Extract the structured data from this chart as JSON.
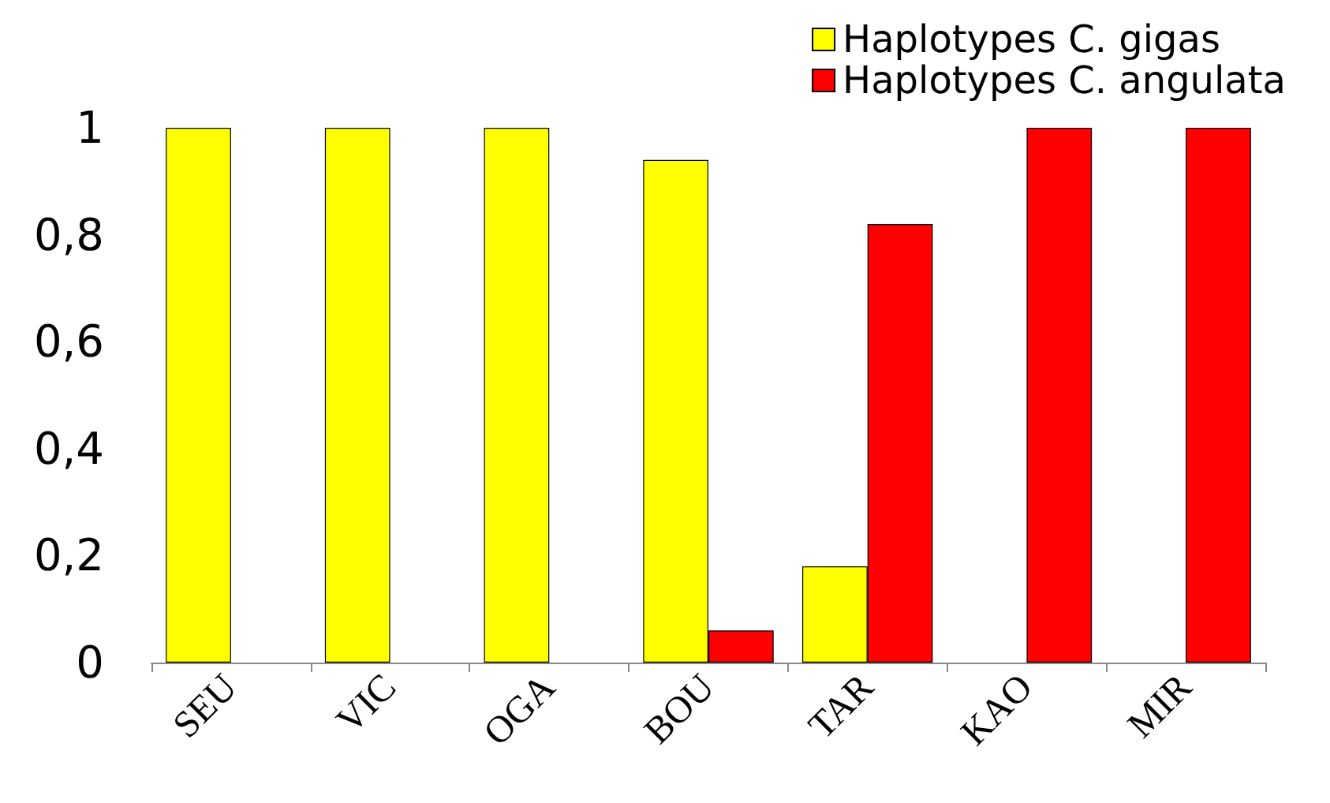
{
  "chart_data": {
    "type": "bar",
    "categories": [
      "SEU",
      "VIC",
      "OGA",
      "BOU",
      "TAR",
      "KAO",
      "MIR"
    ],
    "series": [
      {
        "name": "Haplotypes C. gigas",
        "color": "#ffff00",
        "values": [
          1,
          1,
          1,
          0.94,
          0.18,
          null,
          null
        ]
      },
      {
        "name": "Haplotypes C. angulata",
        "color": "#ff0000",
        "values": [
          null,
          null,
          null,
          0.06,
          0.82,
          1,
          1
        ]
      }
    ],
    "ylim": [
      0,
      1
    ],
    "yticks": [
      0,
      {
        "value": 0.2,
        "label": "0,2"
      },
      {
        "value": 0.4,
        "label": "0,4"
      },
      {
        "value": 0.6,
        "label": "0,6"
      },
      {
        "value": 0.8,
        "label": "0,8"
      },
      1
    ],
    "grid": false,
    "legend": "top right"
  }
}
